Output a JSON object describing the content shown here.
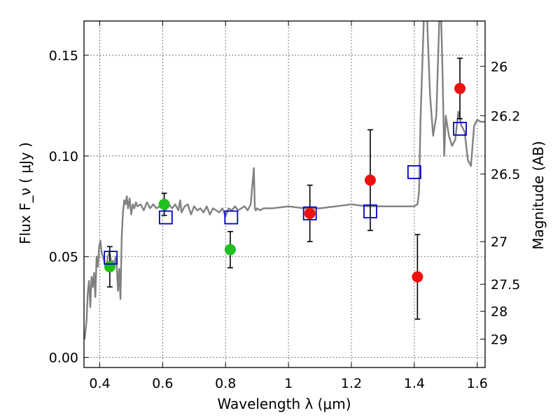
{
  "chart_data": {
    "type": "scatter",
    "xlabel": "Wavelength  λ (μm)",
    "ylabel": "Flux  F_ν  ( μJy )",
    "y2label": "Magnitude (AB)",
    "xlim": [
      0.35,
      1.625
    ],
    "ylim": [
      -0.005,
      0.167
    ],
    "x_ticks": [
      0.4,
      0.6,
      0.8,
      1.0,
      1.2,
      1.4,
      1.6
    ],
    "x_tick_labels": [
      "0.4",
      "0.6",
      "0.8",
      "1",
      "1.2",
      "1.4",
      "1.6"
    ],
    "y_ticks": [
      0.0,
      0.05,
      0.1,
      0.15
    ],
    "y_tick_labels": [
      "0.00",
      "0.05",
      "0.10",
      "0.15"
    ],
    "y2_ticks": [
      {
        "label": "26",
        "flux": 0.1445
      },
      {
        "label": "26.2",
        "flux": 0.12
      },
      {
        "label": "26.5",
        "flux": 0.091
      },
      {
        "label": "27",
        "flux": 0.0575
      },
      {
        "label": "27.5",
        "flux": 0.0363
      },
      {
        "label": "28",
        "flux": 0.0229
      },
      {
        "label": "29",
        "flux": 0.0091
      }
    ],
    "grid": true,
    "colors": {
      "model": "#808080",
      "optical": "#1fbf1f",
      "nir": "#ee1111",
      "model_box": "#0000cc",
      "errorbar": "#000000"
    },
    "model_spectrum": {
      "x": [
        0.352,
        0.358,
        0.362,
        0.366,
        0.37,
        0.374,
        0.378,
        0.382,
        0.386,
        0.39,
        0.394,
        0.398,
        0.402,
        0.406,
        0.41,
        0.414,
        0.418,
        0.422,
        0.426,
        0.43,
        0.434,
        0.438,
        0.442,
        0.446,
        0.45,
        0.454,
        0.458,
        0.462,
        0.466,
        0.47,
        0.474,
        0.478,
        0.482,
        0.486,
        0.49,
        0.495,
        0.5,
        0.505,
        0.51,
        0.515,
        0.52,
        0.53,
        0.54,
        0.55,
        0.56,
        0.57,
        0.58,
        0.59,
        0.6,
        0.61,
        0.62,
        0.63,
        0.64,
        0.65,
        0.656,
        0.66,
        0.67,
        0.68,
        0.69,
        0.7,
        0.71,
        0.72,
        0.73,
        0.74,
        0.75,
        0.76,
        0.77,
        0.78,
        0.79,
        0.8,
        0.81,
        0.82,
        0.83,
        0.84,
        0.85,
        0.86,
        0.87,
        0.88,
        0.885,
        0.89,
        0.893,
        0.896,
        0.9,
        0.91,
        0.92,
        0.95,
        1.0,
        1.05,
        1.1,
        1.15,
        1.2,
        1.25,
        1.3,
        1.35,
        1.38,
        1.4,
        1.41,
        1.415,
        1.42,
        1.43,
        1.44,
        1.45,
        1.46,
        1.47,
        1.48,
        1.485,
        1.49,
        1.495,
        1.5,
        1.51,
        1.52,
        1.53,
        1.54,
        1.55,
        1.56,
        1.57,
        1.58,
        1.59,
        1.6,
        1.61,
        1.625
      ],
      "y": [
        0.009,
        0.018,
        0.032,
        0.038,
        0.025,
        0.04,
        0.035,
        0.042,
        0.03,
        0.05,
        0.045,
        0.055,
        0.058,
        0.052,
        0.05,
        0.048,
        0.045,
        0.046,
        0.05,
        0.052,
        0.05,
        0.045,
        0.048,
        0.044,
        0.05,
        0.046,
        0.033,
        0.044,
        0.029,
        0.06,
        0.072,
        0.078,
        0.076,
        0.08,
        0.074,
        0.079,
        0.071,
        0.076,
        0.074,
        0.077,
        0.075,
        0.076,
        0.073,
        0.077,
        0.074,
        0.076,
        0.074,
        0.075,
        0.077,
        0.073,
        0.076,
        0.074,
        0.076,
        0.073,
        0.078,
        0.072,
        0.075,
        0.076,
        0.071,
        0.075,
        0.073,
        0.074,
        0.072,
        0.075,
        0.071,
        0.074,
        0.073,
        0.072,
        0.074,
        0.07,
        0.074,
        0.073,
        0.075,
        0.073,
        0.074,
        0.075,
        0.073,
        0.076,
        0.085,
        0.094,
        0.074,
        0.073,
        0.074,
        0.073,
        0.074,
        0.074,
        0.075,
        0.074,
        0.074,
        0.075,
        0.076,
        0.075,
        0.075,
        0.075,
        0.075,
        0.075,
        0.076,
        0.082,
        0.12,
        0.167,
        0.17,
        0.13,
        0.11,
        0.12,
        0.17,
        0.17,
        0.14,
        0.1,
        0.12,
        0.11,
        0.105,
        0.108,
        0.122,
        0.115,
        0.112,
        0.098,
        0.095,
        0.115,
        0.118,
        0.117,
        0.117
      ]
    },
    "series": [
      {
        "kind": "optical",
        "points": [
          {
            "x": 0.432,
            "y": 0.045,
            "yerr": 0.01
          },
          {
            "x": 0.605,
            "y": 0.076,
            "yerr": 0.0055
          },
          {
            "x": 0.815,
            "y": 0.0535,
            "yerr": 0.009
          }
        ]
      },
      {
        "kind": "nir",
        "points": [
          {
            "x": 1.068,
            "y": 0.0715,
            "yerr": 0.014
          },
          {
            "x": 1.26,
            "y": 0.088,
            "yerr": 0.025
          },
          {
            "x": 1.41,
            "y": 0.04,
            "yerr": 0.021
          },
          {
            "x": 1.545,
            "y": 0.1335,
            "yerr": 0.015
          }
        ]
      },
      {
        "kind": "model_box",
        "points": [
          {
            "x": 0.435,
            "y": 0.0495
          },
          {
            "x": 0.61,
            "y": 0.0695
          },
          {
            "x": 0.818,
            "y": 0.0695
          },
          {
            "x": 1.068,
            "y": 0.0715
          },
          {
            "x": 1.26,
            "y": 0.0725
          },
          {
            "x": 1.4,
            "y": 0.092
          },
          {
            "x": 1.545,
            "y": 0.1135
          }
        ]
      }
    ]
  }
}
